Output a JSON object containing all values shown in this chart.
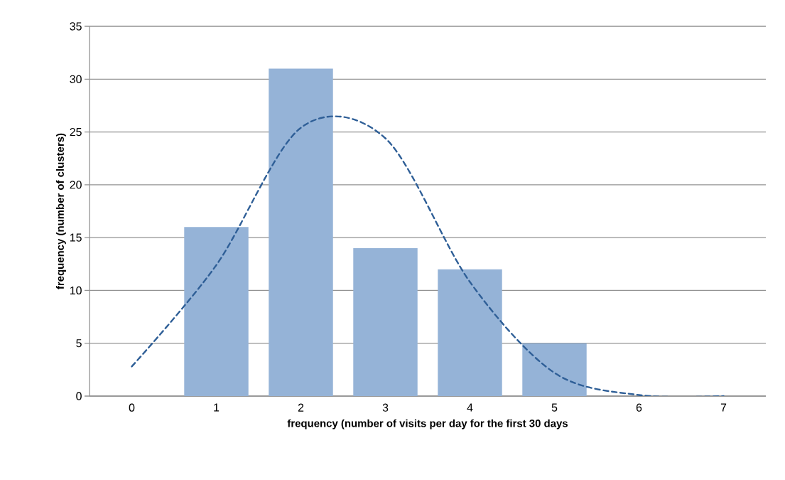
{
  "chart_data": {
    "type": "bar",
    "xlabel": "frequency  (number of visits per day for  the first 30 days",
    "ylabel": "frequency  (number of clusters)",
    "categories": [
      "0",
      "1",
      "2",
      "3",
      "4",
      "5",
      "6",
      "7"
    ],
    "series": [
      {
        "color": "#95b3d7",
        "values": [
          0,
          16,
          31,
          14,
          12,
          5,
          0,
          0
        ]
      },
      {
        "type": "line",
        "color": "#2f5f97",
        "line_style": "dashed",
        "values": [
          2.8,
          12.4,
          25.4,
          24.4,
          10.8,
          2.2,
          0.1,
          0
        ]
      }
    ],
    "ylim": [
      0,
      35
    ],
    "yticks": [
      0,
      5,
      10,
      15,
      20,
      25,
      30,
      35
    ],
    "grid": "y",
    "marker": "none"
  }
}
